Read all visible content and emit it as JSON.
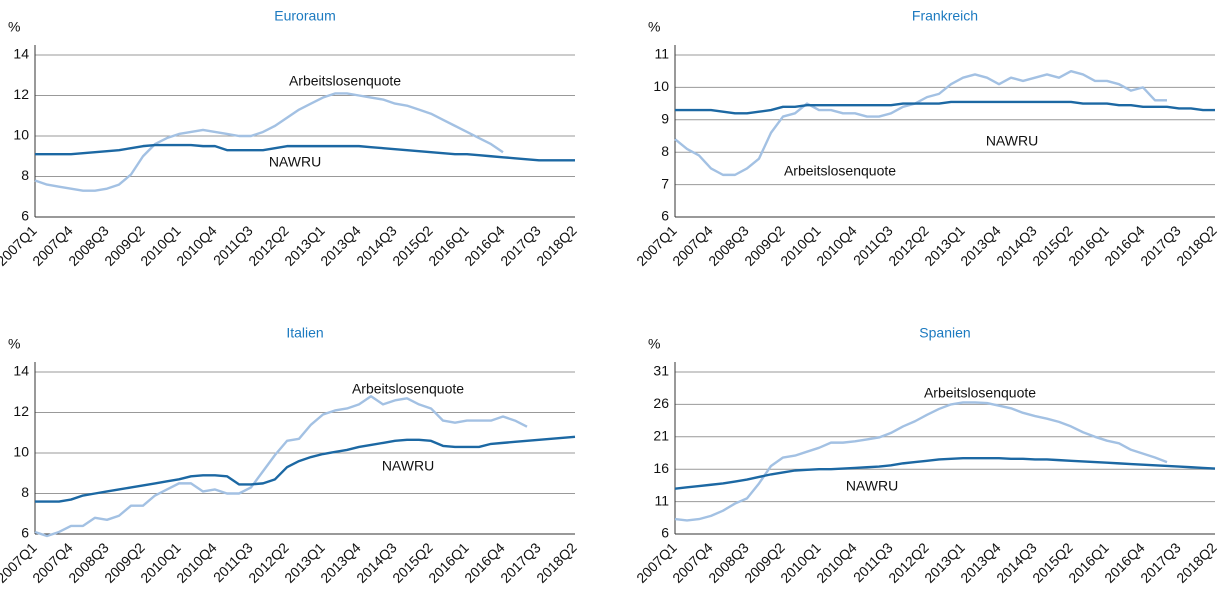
{
  "chart_data": [
    {
      "type": "line",
      "title": "Euroraum",
      "y_label": "%",
      "categories": [
        "2007Q1",
        null,
        null,
        "2007Q4",
        null,
        null,
        "2008Q3",
        null,
        null,
        "2009Q2",
        null,
        null,
        "2010Q1",
        null,
        null,
        "2010Q4",
        null,
        null,
        "2011Q3",
        null,
        null,
        "2012Q2",
        null,
        null,
        "2013Q1",
        null,
        null,
        "2013Q4",
        null,
        null,
        "2014Q3",
        null,
        null,
        "2015Q2",
        null,
        null,
        "2016Q1",
        null,
        null,
        "2016Q4",
        null,
        null,
        "2017Q3",
        null,
        null,
        "2018Q2"
      ],
      "ylim": [
        6,
        14
      ],
      "yticks": [
        6,
        8,
        10,
        12,
        14
      ],
      "grid": true,
      "series": [
        {
          "name": "Arbeitslosenquote",
          "color": "#a3c1e3",
          "values": [
            7.8,
            7.6,
            7.5,
            7.4,
            7.3,
            7.3,
            7.4,
            7.6,
            8.1,
            9.0,
            9.6,
            9.9,
            10.1,
            10.2,
            10.3,
            10.2,
            10.1,
            10.0,
            10.0,
            10.2,
            10.5,
            10.9,
            11.3,
            11.6,
            11.9,
            12.1,
            12.1,
            12.0,
            11.9,
            11.8,
            11.6,
            11.5,
            11.3,
            11.1,
            10.8,
            10.5,
            10.2,
            9.9,
            9.6,
            9.2,
            null,
            null,
            null,
            null,
            null,
            null
          ]
        },
        {
          "name": "NAWRU",
          "color": "#1c68a3",
          "values": [
            9.1,
            9.1,
            9.1,
            9.1,
            9.15,
            9.2,
            9.25,
            9.3,
            9.4,
            9.5,
            9.55,
            9.55,
            9.55,
            9.55,
            9.5,
            9.5,
            9.3,
            9.3,
            9.3,
            9.3,
            9.4,
            9.5,
            9.5,
            9.5,
            9.5,
            9.5,
            9.5,
            9.5,
            9.45,
            9.4,
            9.35,
            9.3,
            9.25,
            9.2,
            9.15,
            9.1,
            9.1,
            9.05,
            9.0,
            8.95,
            8.9,
            8.85,
            8.8,
            8.8,
            8.8,
            8.8
          ]
        }
      ]
    },
    {
      "type": "line",
      "title": "Frankreich",
      "y_label": "%",
      "categories": [
        "2007Q1",
        null,
        null,
        "2007Q4",
        null,
        null,
        "2008Q3",
        null,
        null,
        "2009Q2",
        null,
        null,
        "2010Q1",
        null,
        null,
        "2010Q4",
        null,
        null,
        "2011Q3",
        null,
        null,
        "2012Q2",
        null,
        null,
        "2013Q1",
        null,
        null,
        "2013Q4",
        null,
        null,
        "2014Q3",
        null,
        null,
        "2015Q2",
        null,
        null,
        "2016Q1",
        null,
        null,
        "2016Q4",
        null,
        null,
        "2017Q3",
        null,
        null,
        "2018Q2"
      ],
      "ylim": [
        6,
        11
      ],
      "yticks": [
        6,
        7,
        8,
        9,
        10,
        11
      ],
      "grid": true,
      "series": [
        {
          "name": "Arbeitslosenquote",
          "color": "#a3c1e3",
          "values": [
            8.4,
            8.1,
            7.9,
            7.5,
            7.3,
            7.3,
            7.5,
            7.8,
            8.6,
            9.1,
            9.2,
            9.5,
            9.3,
            9.3,
            9.2,
            9.2,
            9.1,
            9.1,
            9.2,
            9.4,
            9.5,
            9.7,
            9.8,
            10.1,
            10.3,
            10.4,
            10.3,
            10.1,
            10.3,
            10.2,
            10.3,
            10.4,
            10.3,
            10.5,
            10.4,
            10.2,
            10.2,
            10.1,
            9.9,
            10.0,
            9.6,
            9.6,
            null,
            null,
            null,
            null
          ]
        },
        {
          "name": "NAWRU",
          "color": "#1c68a3",
          "values": [
            9.3,
            9.3,
            9.3,
            9.3,
            9.25,
            9.2,
            9.2,
            9.25,
            9.3,
            9.4,
            9.4,
            9.45,
            9.45,
            9.45,
            9.45,
            9.45,
            9.45,
            9.45,
            9.45,
            9.5,
            9.5,
            9.5,
            9.5,
            9.55,
            9.55,
            9.55,
            9.55,
            9.55,
            9.55,
            9.55,
            9.55,
            9.55,
            9.55,
            9.55,
            9.5,
            9.5,
            9.5,
            9.45,
            9.45,
            9.4,
            9.4,
            9.4,
            9.35,
            9.35,
            9.3,
            9.3
          ]
        }
      ]
    },
    {
      "type": "line",
      "title": "Italien",
      "y_label": "%",
      "categories": [
        "2007Q1",
        null,
        null,
        "2007Q4",
        null,
        null,
        "2008Q3",
        null,
        null,
        "2009Q2",
        null,
        null,
        "2010Q1",
        null,
        null,
        "2010Q4",
        null,
        null,
        "2011Q3",
        null,
        null,
        "2012Q2",
        null,
        null,
        "2013Q1",
        null,
        null,
        "2013Q4",
        null,
        null,
        "2014Q3",
        null,
        null,
        "2015Q2",
        null,
        null,
        "2016Q1",
        null,
        null,
        "2016Q4",
        null,
        null,
        "2017Q3",
        null,
        null,
        "2018Q2"
      ],
      "ylim": [
        6,
        14
      ],
      "yticks": [
        6,
        8,
        10,
        12,
        14
      ],
      "grid": true,
      "series": [
        {
          "name": "Arbeitslosenquote",
          "color": "#a3c1e3",
          "values": [
            6.1,
            5.9,
            6.1,
            6.4,
            6.4,
            6.8,
            6.7,
            6.9,
            7.4,
            7.4,
            7.9,
            8.2,
            8.5,
            8.5,
            8.1,
            8.2,
            8.0,
            8.0,
            8.3,
            9.1,
            9.9,
            10.6,
            10.7,
            11.4,
            11.9,
            12.1,
            12.2,
            12.4,
            12.8,
            12.4,
            12.6,
            12.7,
            12.4,
            12.2,
            11.6,
            11.5,
            11.6,
            11.6,
            11.6,
            11.8,
            11.6,
            11.3,
            null,
            null,
            null,
            null
          ]
        },
        {
          "name": "NAWRU",
          "color": "#1c68a3",
          "values": [
            7.6,
            7.6,
            7.6,
            7.7,
            7.9,
            8.0,
            8.1,
            8.2,
            8.3,
            8.4,
            8.5,
            8.6,
            8.7,
            8.85,
            8.9,
            8.9,
            8.85,
            8.45,
            8.45,
            8.5,
            8.7,
            9.3,
            9.6,
            9.8,
            9.95,
            10.05,
            10.15,
            10.3,
            10.4,
            10.5,
            10.6,
            10.65,
            10.65,
            10.6,
            10.35,
            10.3,
            10.3,
            10.3,
            10.45,
            10.5,
            10.55,
            10.6,
            10.65,
            10.7,
            10.75,
            10.8
          ]
        }
      ]
    },
    {
      "type": "line",
      "title": "Spanien",
      "y_label": "%",
      "categories": [
        "2007Q1",
        null,
        null,
        "2007Q4",
        null,
        null,
        "2008Q3",
        null,
        null,
        "2009Q2",
        null,
        null,
        "2010Q1",
        null,
        null,
        "2010Q4",
        null,
        null,
        "2011Q3",
        null,
        null,
        "2012Q2",
        null,
        null,
        "2013Q1",
        null,
        null,
        "2013Q4",
        null,
        null,
        "2014Q3",
        null,
        null,
        "2015Q2",
        null,
        null,
        "2016Q1",
        null,
        null,
        "2016Q4",
        null,
        null,
        "2017Q3",
        null,
        null,
        "2018Q2"
      ],
      "ylim": [
        6,
        31
      ],
      "yticks": [
        6,
        11,
        16,
        21,
        26,
        31
      ],
      "grid": true,
      "series": [
        {
          "name": "Arbeitslosenquote",
          "color": "#a3c1e3",
          "values": [
            8.3,
            8.1,
            8.3,
            8.8,
            9.6,
            10.7,
            11.5,
            13.8,
            16.5,
            17.8,
            18.1,
            18.7,
            19.3,
            20.1,
            20.1,
            20.3,
            20.6,
            20.9,
            21.6,
            22.6,
            23.4,
            24.4,
            25.3,
            26.0,
            26.3,
            26.3,
            26.2,
            25.8,
            25.4,
            24.7,
            24.2,
            23.8,
            23.3,
            22.6,
            21.7,
            21.0,
            20.4,
            20.0,
            19.0,
            18.4,
            17.8,
            17.1,
            null,
            null,
            null,
            null
          ]
        },
        {
          "name": "NAWRU",
          "color": "#1c68a3",
          "values": [
            13.0,
            13.2,
            13.4,
            13.6,
            13.8,
            14.1,
            14.4,
            14.8,
            15.2,
            15.5,
            15.8,
            15.9,
            16.0,
            16.0,
            16.1,
            16.2,
            16.3,
            16.4,
            16.6,
            16.9,
            17.1,
            17.3,
            17.5,
            17.6,
            17.7,
            17.7,
            17.7,
            17.7,
            17.6,
            17.6,
            17.5,
            17.5,
            17.4,
            17.3,
            17.2,
            17.1,
            17.0,
            16.9,
            16.8,
            16.7,
            16.6,
            16.5,
            16.4,
            16.3,
            16.2,
            16.1
          ]
        }
      ]
    }
  ]
}
